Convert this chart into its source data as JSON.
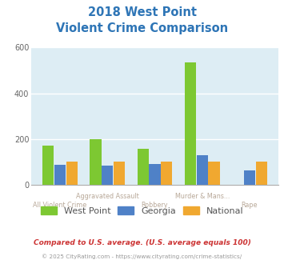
{
  "title_line1": "2018 West Point",
  "title_line2": "Violent Crime Comparison",
  "categories": [
    "All Violent Crime",
    "Aggravated Assault",
    "Robbery",
    "Murder & Mans...",
    "Rape"
  ],
  "cat_row1": [
    "",
    "Aggravated Assault",
    "",
    "Murder & Mans...",
    ""
  ],
  "cat_row2": [
    "All Violent Crime",
    "",
    "Robbery",
    "",
    "Rape"
  ],
  "west_point": [
    170,
    200,
    158,
    535,
    0
  ],
  "georgia": [
    88,
    85,
    92,
    128,
    63
  ],
  "national": [
    100,
    100,
    100,
    100,
    100
  ],
  "colors": {
    "west_point": "#7dc832",
    "georgia": "#4f81c7",
    "national": "#f0a830"
  },
  "ylim": [
    0,
    600
  ],
  "yticks": [
    0,
    200,
    400,
    600
  ],
  "background_color": "#ddedf4",
  "title_color": "#2e75b6",
  "label_color": "#b8a898",
  "footnote1": "Compared to U.S. average. (U.S. average equals 100)",
  "footnote2": "© 2025 CityRating.com - https://www.cityrating.com/crime-statistics/",
  "footnote1_color": "#cc3333",
  "footnote2_color": "#999999",
  "legend_labels": [
    "West Point",
    "Georgia",
    "National"
  ],
  "legend_text_color": "#555555"
}
